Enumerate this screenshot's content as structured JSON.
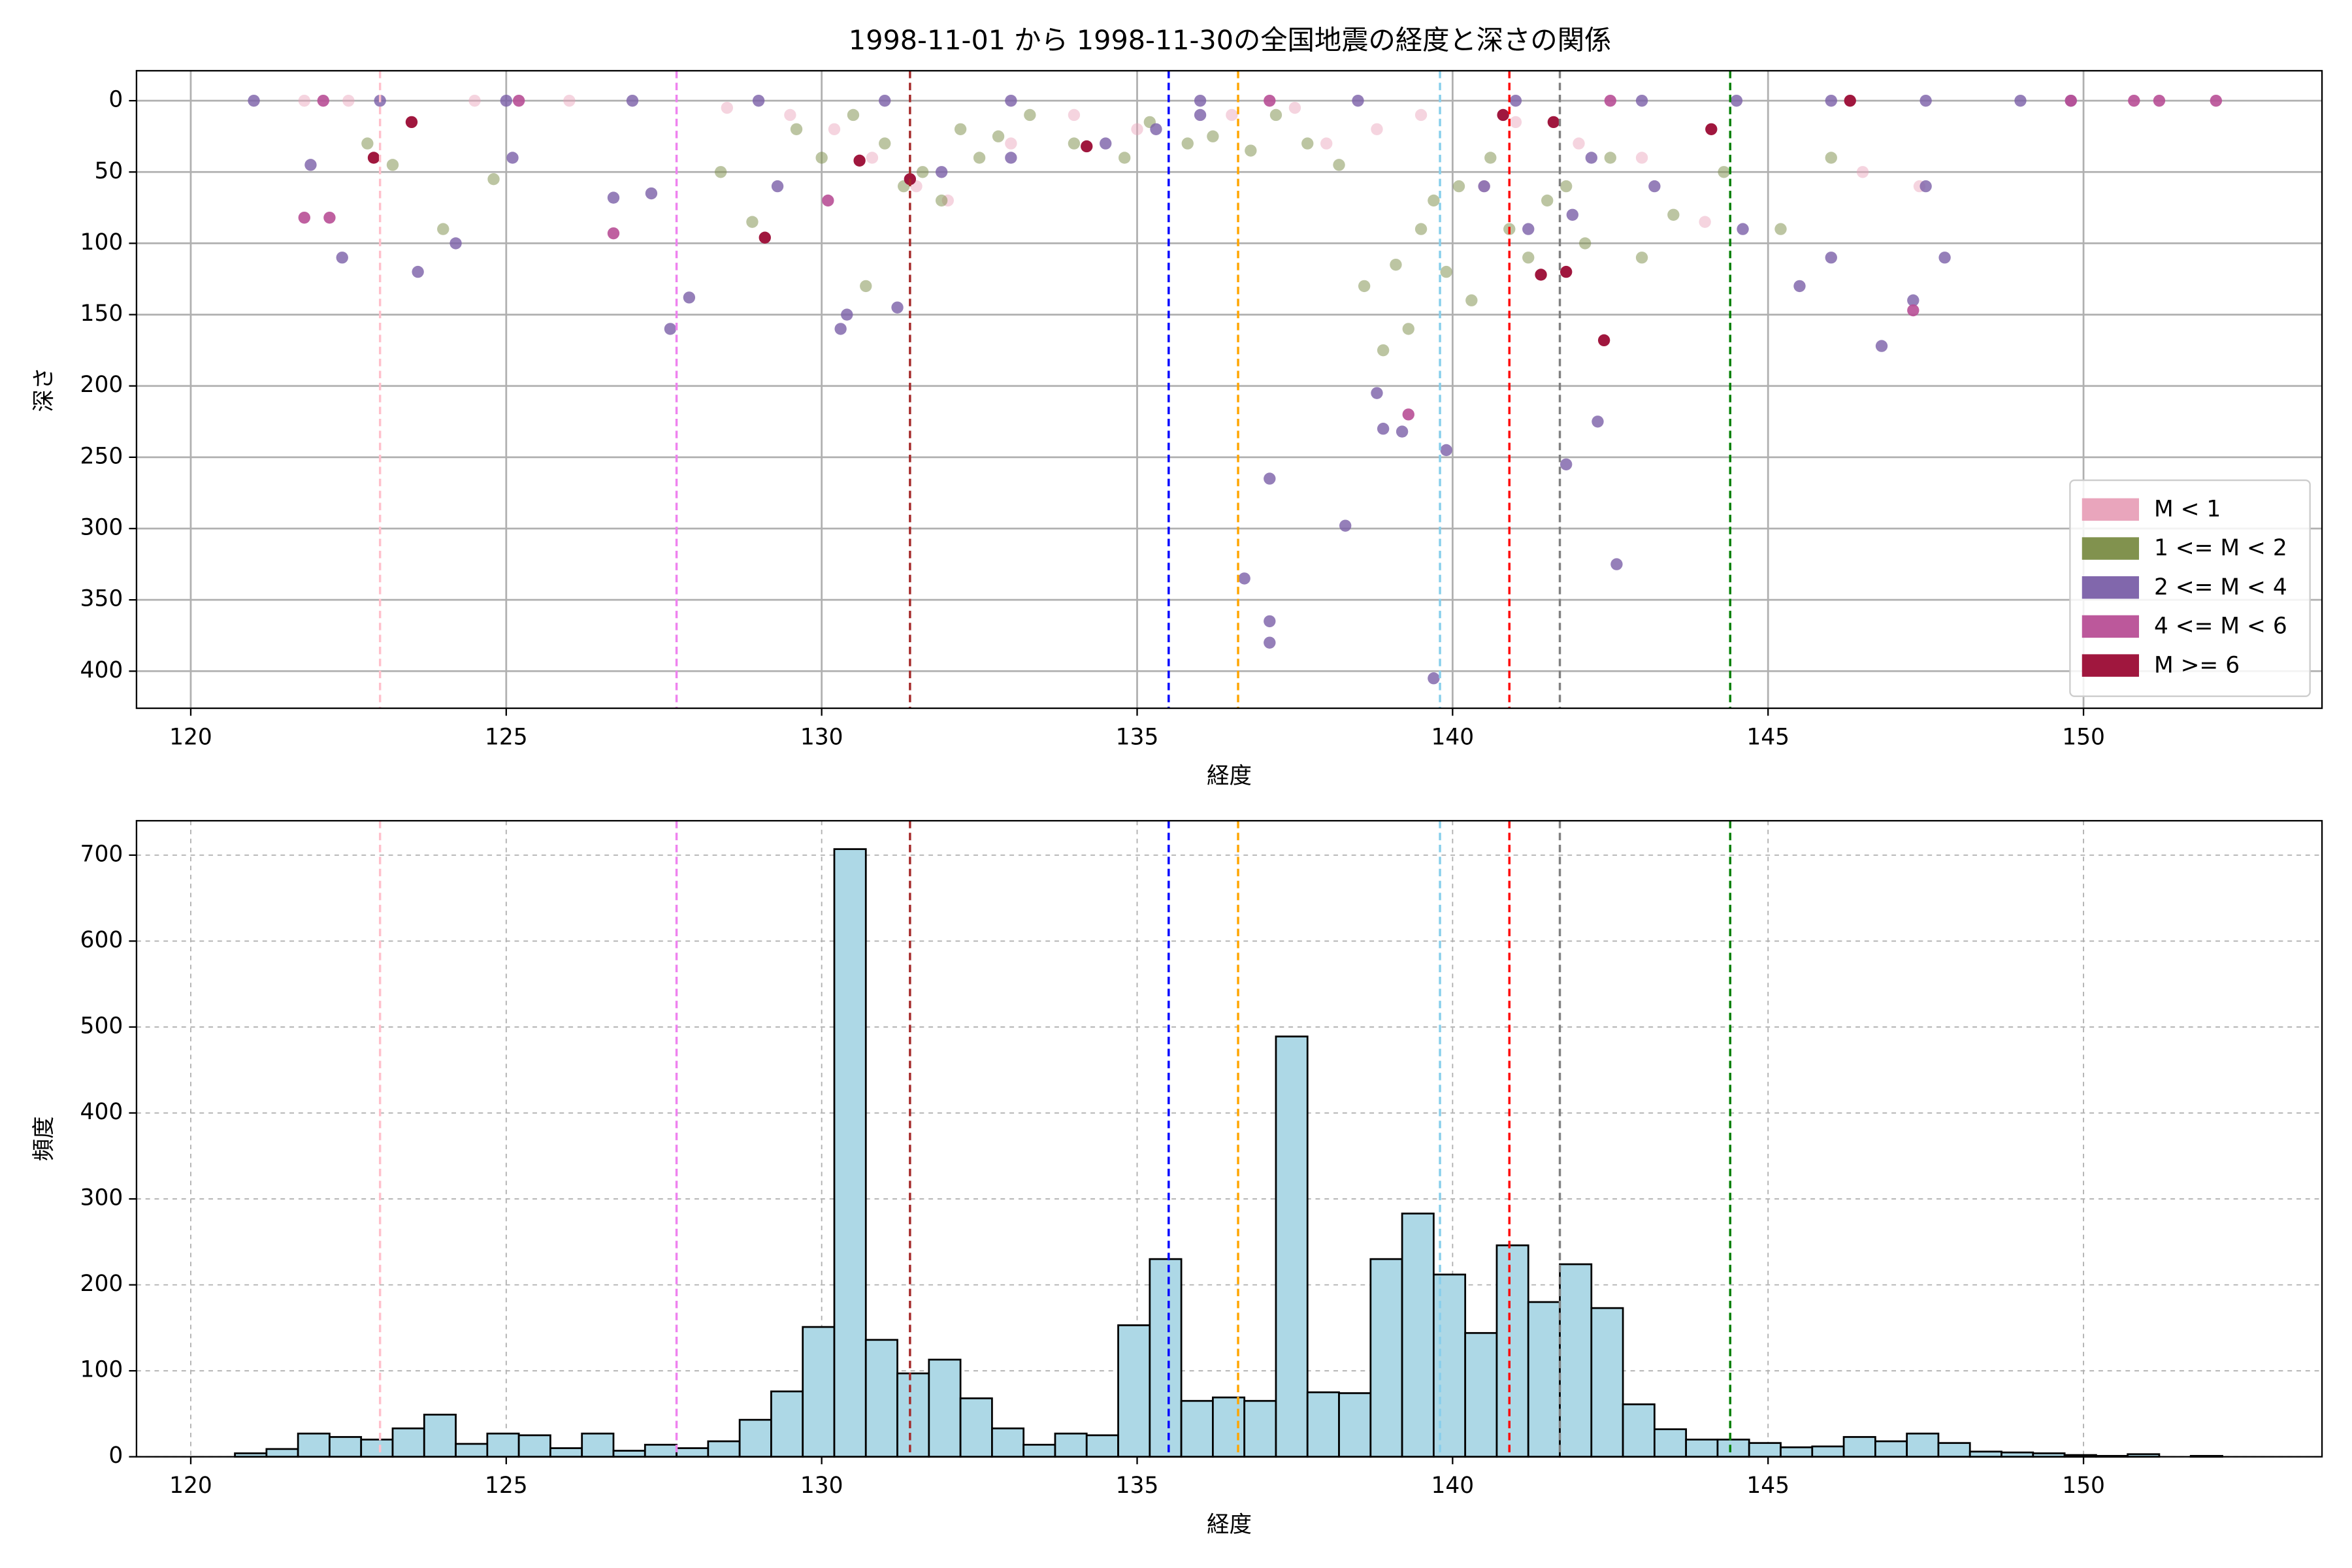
{
  "chart_data": [
    {
      "type": "scatter",
      "title": "1998-11-01 から 1998-11-30の全国地震の経度と深さの関係",
      "x_label": "経度",
      "y_label": "深さ",
      "xlim": [
        119.14,
        153.78
      ],
      "xticks": [
        120,
        125,
        130,
        135,
        140,
        145,
        150
      ],
      "ylim": [
        426,
        -21
      ],
      "yticks": [
        0,
        50,
        100,
        150,
        200,
        250,
        300,
        350,
        400
      ],
      "y_inverted": true,
      "grid": true,
      "grid_style": "solid",
      "legend": "lower right",
      "series": [
        {
          "name": "M < 1",
          "color": "#e8a0b8",
          "opacity": 0.45,
          "x": [
            121.8,
            122.5,
            123.5,
            124.5,
            126,
            128.5,
            129.5,
            130.2,
            130.8,
            131.5,
            132,
            133,
            134,
            135,
            136.5,
            137.5,
            138,
            138.8,
            139.5,
            140.5,
            141,
            142,
            143,
            144,
            146.5,
            147.4
          ],
          "y": [
            0,
            0,
            15,
            0,
            0,
            5,
            10,
            20,
            40,
            60,
            70,
            30,
            10,
            20,
            10,
            5,
            30,
            20,
            10,
            60,
            15,
            30,
            40,
            85,
            50,
            60
          ]
        },
        {
          "name": "1 <= M < 2",
          "color": "#7a8c45",
          "opacity": 0.5,
          "x": [
            122.8,
            123.2,
            124,
            124.8,
            128.4,
            128.9,
            129.6,
            130,
            130.5,
            130.7,
            131,
            131.3,
            131.6,
            131.9,
            132.2,
            132.5,
            132.8,
            133.3,
            134,
            134.8,
            135.2,
            135.8,
            136.2,
            136.8,
            137.2,
            137.7,
            138.2,
            138.6,
            138.9,
            139.1,
            139.3,
            139.5,
            139.7,
            139.9,
            140.1,
            140.3,
            140.6,
            140.9,
            141.2,
            141.5,
            141.8,
            142.1,
            142.5,
            143,
            143.5,
            144.3,
            145.2,
            146
          ],
          "y": [
            30,
            45,
            90,
            55,
            50,
            85,
            20,
            40,
            10,
            130,
            30,
            60,
            50,
            70,
            20,
            40,
            25,
            10,
            30,
            40,
            15,
            30,
            25,
            35,
            10,
            30,
            45,
            130,
            175,
            115,
            160,
            90,
            70,
            120,
            60,
            140,
            40,
            90,
            110,
            70,
            60,
            100,
            40,
            110,
            80,
            50,
            90,
            40
          ]
        },
        {
          "name": "2 <= M < 4",
          "color": "#7a5fa8",
          "opacity": 0.8,
          "x": [
            139.7,
            137.1,
            137.1,
            136.7,
            137.1,
            138.3,
            142.6,
            139.9,
            141.8,
            142.3,
            138.9,
            139.2,
            138.8,
            121.9,
            122.4,
            123.6,
            124.2,
            125.1,
            126.7,
            127.3,
            127.6,
            127.9,
            129.3,
            130.3,
            130.4,
            131.2,
            131.9,
            133,
            134.5,
            135.3,
            136,
            140.5,
            141.2,
            141.9,
            142.2,
            143.2,
            144.6,
            145.5,
            146,
            146.8,
            147.3,
            147.8,
            147.5,
            121,
            123,
            125,
            127,
            129,
            131,
            133,
            136,
            138.5,
            141,
            143,
            144.5,
            146,
            147.5,
            149,
            149.8
          ],
          "y": [
            405,
            365,
            380,
            335,
            265,
            298,
            325,
            245,
            255,
            225,
            230,
            232,
            205,
            45,
            110,
            120,
            100,
            40,
            68,
            65,
            160,
            138,
            60,
            160,
            150,
            145,
            50,
            40,
            30,
            20,
            10,
            60,
            90,
            80,
            40,
            60,
            90,
            130,
            110,
            172,
            140,
            110,
            60,
            0,
            0,
            0,
            0,
            0,
            0,
            0,
            0,
            0,
            0,
            0,
            0,
            0,
            0,
            0,
            0
          ]
        },
        {
          "name": "4 <= M < 6",
          "color": "#b84f96",
          "opacity": 0.9,
          "x": [
            121.8,
            122.2,
            126.7,
            139.3,
            147.3,
            142.5,
            149.8,
            150.8,
            151.2,
            152.1,
            130.1,
            137.1,
            122.1,
            125.2
          ],
          "y": [
            82,
            82,
            93,
            220,
            147,
            0,
            0,
            0,
            0,
            0,
            70,
            0,
            0,
            0
          ]
        },
        {
          "name": "M >= 6",
          "color": "#a0173e",
          "opacity": 1,
          "x": [
            122.9,
            129.1,
            130.6,
            141.4,
            141.8,
            142.4,
            144.1,
            146.3,
            134.2,
            140.8,
            141.6,
            123.5,
            131.4
          ],
          "y": [
            40,
            96,
            42,
            122,
            120,
            168,
            20,
            0,
            32,
            10,
            15,
            15,
            55
          ]
        }
      ],
      "vlines": [
        {
          "x": 123.0,
          "color": "pink"
        },
        {
          "x": 127.7,
          "color": "violet"
        },
        {
          "x": 131.4,
          "color": "brown"
        },
        {
          "x": 135.5,
          "color": "blue"
        },
        {
          "x": 136.6,
          "color": "orange"
        },
        {
          "x": 139.8,
          "color": "skyblue"
        },
        {
          "x": 140.9,
          "color": "red"
        },
        {
          "x": 141.7,
          "color": "gray"
        },
        {
          "x": 144.4,
          "color": "green"
        }
      ]
    },
    {
      "type": "histogram",
      "x_label": "経度",
      "y_label": "頻度",
      "xlim": [
        119.14,
        153.78
      ],
      "xticks": [
        120,
        125,
        130,
        135,
        140,
        145,
        150
      ],
      "ylim": [
        0,
        740
      ],
      "yticks": [
        0,
        100,
        200,
        300,
        400,
        500,
        600,
        700
      ],
      "grid": true,
      "grid_style": "dashed",
      "color": "#add8e6",
      "edgecolor": "#000000",
      "bins": [
        120.7,
        121.2,
        121.7,
        122.2,
        122.7,
        123.2,
        123.7,
        124.2,
        124.7,
        125.2,
        125.7,
        126.2,
        126.7,
        127.2,
        127.7,
        128.2,
        128.7,
        129.2,
        129.7,
        130.2,
        130.7,
        131.2,
        131.7,
        132.2,
        132.7,
        133.2,
        133.7,
        134.2,
        134.7,
        135.2,
        135.7,
        136.2,
        136.7,
        137.2,
        137.7,
        138.2,
        138.7,
        139.2,
        139.7,
        140.2,
        140.7,
        141.2,
        141.7,
        142.2,
        142.7,
        143.2,
        143.7,
        144.2,
        144.7,
        145.2,
        145.7,
        146.2,
        146.7,
        147.2,
        147.7,
        148.2,
        148.7,
        149.2,
        149.7,
        150.2,
        150.7,
        151.2,
        151.7,
        152.2
      ],
      "values": [
        4,
        9,
        27,
        23,
        20,
        33,
        49,
        15,
        27,
        25,
        10,
        27,
        7,
        14,
        10,
        18,
        43,
        76,
        151,
        707,
        136,
        97,
        113,
        68,
        33,
        14,
        27,
        25,
        153,
        230,
        65,
        69,
        65,
        489,
        75,
        74,
        230,
        283,
        212,
        144,
        246,
        180,
        224,
        173,
        61,
        32,
        20,
        20,
        16,
        11,
        12,
        23,
        18,
        27,
        16,
        6,
        5,
        4,
        2,
        1,
        3,
        0,
        1
      ],
      "vlines": [
        {
          "x": 123.0,
          "color": "pink"
        },
        {
          "x": 127.7,
          "color": "violet"
        },
        {
          "x": 131.4,
          "color": "brown"
        },
        {
          "x": 135.5,
          "color": "blue"
        },
        {
          "x": 136.6,
          "color": "orange"
        },
        {
          "x": 139.8,
          "color": "skyblue"
        },
        {
          "x": 140.9,
          "color": "red"
        },
        {
          "x": 141.7,
          "color": "gray"
        },
        {
          "x": 144.4,
          "color": "green"
        }
      ]
    }
  ]
}
